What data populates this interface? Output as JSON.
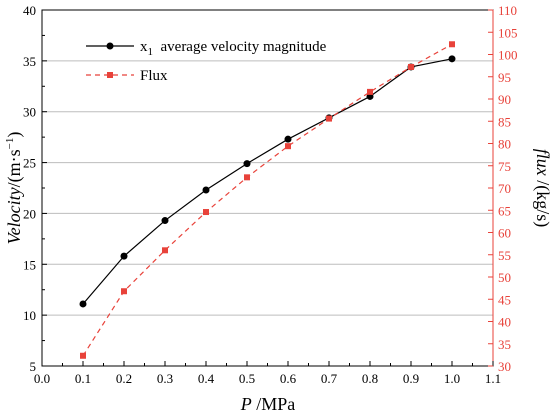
{
  "chart_data": {
    "type": "line",
    "xlabel": "P /MPa",
    "xlabel_var": "P",
    "xlabel_unit": " /MPa",
    "ylabel_left": "Velocity/(m·s⁻¹)",
    "ylabel_left_var": "Velocity",
    "ylabel_left_unit": "/(m·s",
    "ylabel_left_sup": "−1",
    "ylabel_left_close": ")",
    "ylabel_right": "flux /(kg/s)",
    "ylabel_right_var": "flux",
    "ylabel_right_unit": " /(kg/s)",
    "xlim": [
      0.0,
      1.1
    ],
    "xticks": [
      "0.0",
      "0.1",
      "0.2",
      "0.3",
      "0.4",
      "0.5",
      "0.6",
      "0.7",
      "0.8",
      "0.9",
      "1.0",
      "1.1"
    ],
    "ylim_left": [
      5,
      40
    ],
    "yticks_left": [
      "5",
      "10",
      "15",
      "20",
      "25",
      "30",
      "35",
      "40"
    ],
    "ylim_right": [
      30,
      110
    ],
    "yticks_right": [
      "30",
      "35",
      "40",
      "45",
      "50",
      "55",
      "60",
      "65",
      "70",
      "75",
      "80",
      "85",
      "90",
      "95",
      "100",
      "105",
      "110"
    ],
    "grid": "horizontal",
    "legend_position": "top-left",
    "series": [
      {
        "name": "x1  average velocity magnitude",
        "name_main": "x",
        "name_sub": "1",
        "name_rest": "  average velocity magnitude",
        "axis": "left",
        "color": "#000000",
        "line": "solid",
        "marker": "circle",
        "x": [
          0.1,
          0.2,
          0.3,
          0.4,
          0.5,
          0.6,
          0.7,
          0.8,
          0.9,
          1.0
        ],
        "y": [
          11.1,
          15.8,
          19.3,
          22.3,
          24.9,
          27.3,
          29.4,
          31.5,
          34.4,
          35.2
        ]
      },
      {
        "name": "Flux",
        "axis": "right",
        "color": "#e8423a",
        "line": "dashed",
        "marker": "square",
        "x": [
          0.1,
          0.2,
          0.3,
          0.4,
          0.5,
          0.6,
          0.7,
          0.8,
          0.9,
          1.0
        ],
        "y": [
          32.3,
          46.8,
          56.0,
          64.6,
          72.4,
          79.4,
          85.6,
          91.6,
          97.2,
          102.3
        ]
      }
    ]
  }
}
